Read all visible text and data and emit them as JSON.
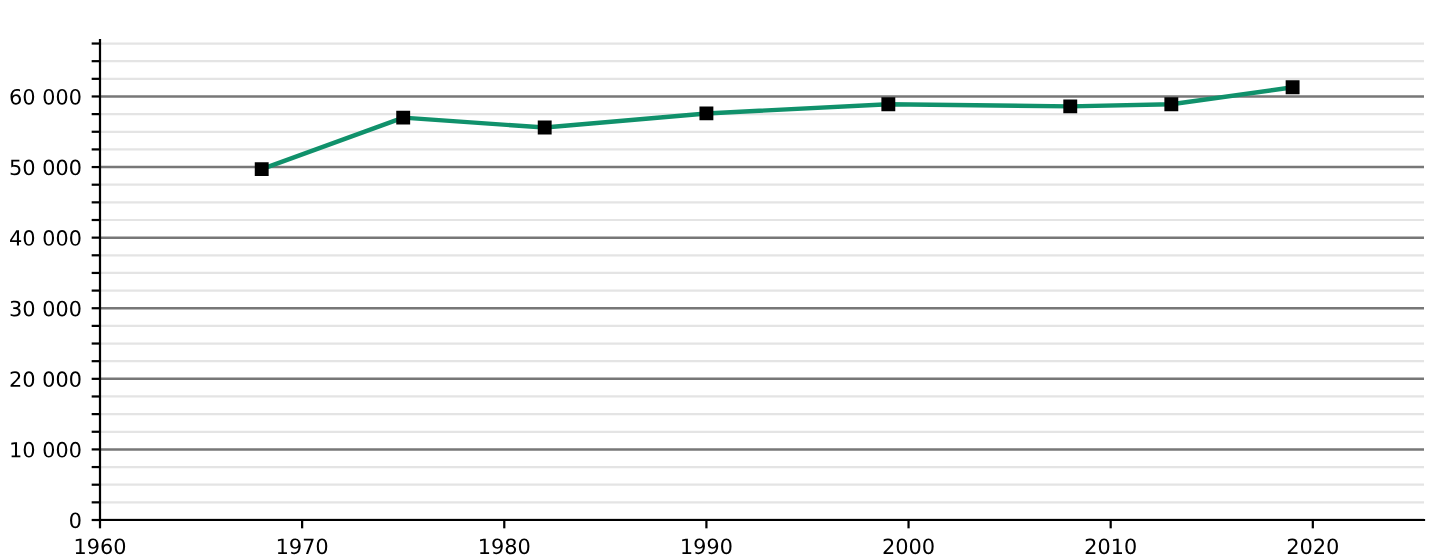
{
  "chart_data": {
    "type": "line",
    "x": [
      1968,
      1975,
      1982,
      1990,
      1999,
      2008,
      2013,
      2019
    ],
    "series": [
      {
        "color": "#10916b",
        "values": [
          49700,
          57000,
          55600,
          57600,
          58900,
          58600,
          58900,
          61300
        ]
      }
    ],
    "xlim": [
      1960,
      2025.5
    ],
    "xticks": [
      1960,
      1970,
      1980,
      1990,
      2000,
      2010,
      2020
    ],
    "ylim": [
      0,
      68000
    ],
    "yticks": [
      {
        "value": 0,
        "label": "0"
      },
      {
        "value": 2500,
        "label": null
      },
      {
        "value": 5000,
        "label": null
      },
      {
        "value": 7500,
        "label": null
      },
      {
        "value": 10000,
        "label": "10 000"
      },
      {
        "value": 12500,
        "label": null
      },
      {
        "value": 15000,
        "label": null
      },
      {
        "value": 17500,
        "label": null
      },
      {
        "value": 20000,
        "label": "20 000"
      },
      {
        "value": 22500,
        "label": null
      },
      {
        "value": 25000,
        "label": null
      },
      {
        "value": 27500,
        "label": null
      },
      {
        "value": 30000,
        "label": "30 000"
      },
      {
        "value": 32500,
        "label": null
      },
      {
        "value": 35000,
        "label": null
      },
      {
        "value": 37500,
        "label": null
      },
      {
        "value": 40000,
        "label": "40 000"
      },
      {
        "value": 42500,
        "label": null
      },
      {
        "value": 45000,
        "label": null
      },
      {
        "value": 47500,
        "label": null
      },
      {
        "value": 50000,
        "label": "50 000"
      },
      {
        "value": 52500,
        "label": null
      },
      {
        "value": 55000,
        "label": null
      },
      {
        "value": 57500,
        "label": null
      },
      {
        "value": 60000,
        "label": "60 000"
      },
      {
        "value": 62500,
        "label": null
      },
      {
        "value": 65000,
        "label": null
      },
      {
        "value": 67500,
        "label": null
      }
    ],
    "grid": "y",
    "marker": "square",
    "line_style": "solid",
    "legend": false
  }
}
